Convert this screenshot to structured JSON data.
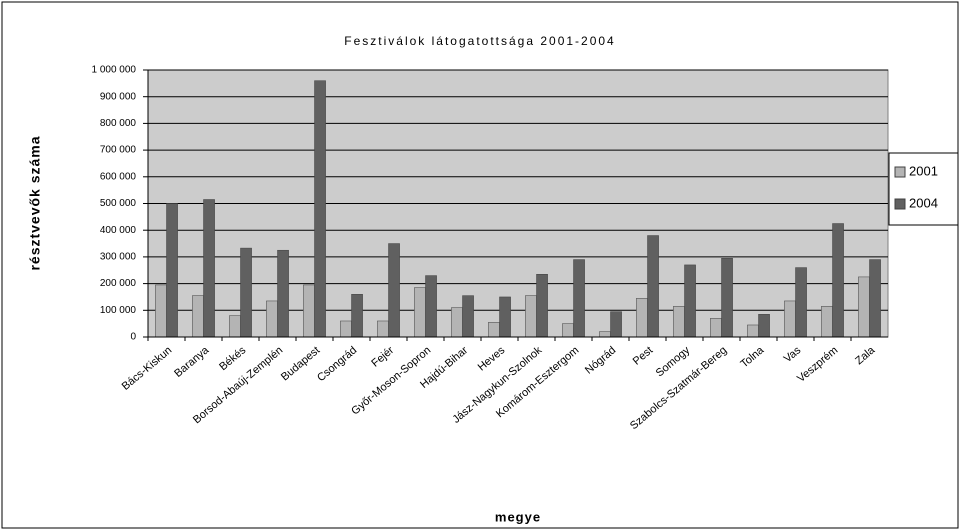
{
  "chart_data": {
    "type": "bar",
    "title": "Fesztiválok látogatottsága 2001-2004",
    "x_label": "megye",
    "y_label": "résztvevők száma",
    "categories": [
      "Bács-Kiskun",
      "Baranya",
      "Békés",
      "Borsod-Abaúj-Zemplén",
      "Budapest",
      "Csongrád",
      "Fejér",
      "Győr-Moson-Sopron",
      "Hajdú-Bihar",
      "Heves",
      "Jász-Nagykun-Szolnok",
      "Komárom-Esztergom",
      "Nógrád",
      "Pest",
      "Somogy",
      "Szabolcs-Szatmár-Bereg",
      "Tolna",
      "Vas",
      "Veszprém",
      "Zala"
    ],
    "series": [
      {
        "name": "2001",
        "color": "#b4b4b4",
        "values": [
          195000,
          155000,
          80000,
          135000,
          195000,
          60000,
          60000,
          185000,
          110000,
          55000,
          155000,
          50000,
          20000,
          145000,
          115000,
          70000,
          45000,
          135000,
          115000,
          225000
        ]
      },
      {
        "name": "2004",
        "color": "#606060",
        "values": [
          500000,
          515000,
          333000,
          325000,
          960000,
          160000,
          350000,
          230000,
          155000,
          150000,
          235000,
          290000,
          95000,
          380000,
          270000,
          295000,
          85000,
          260000,
          425000,
          290000
        ]
      }
    ],
    "ylim": [
      0,
      1000000
    ],
    "yticks": [
      0,
      {
        "value": 100000,
        "label": "100 000"
      },
      {
        "value": 200000,
        "label": "200 000"
      },
      {
        "value": 300000,
        "label": "300 000"
      },
      {
        "value": 400000,
        "label": "400 000"
      },
      {
        "value": 500000,
        "label": "500 000"
      },
      {
        "value": 600000,
        "label": "600 000"
      },
      {
        "value": 700000,
        "label": "700 000"
      },
      {
        "value": 800000,
        "label": "800 000"
      },
      {
        "value": 900000,
        "label": "900 000"
      },
      {
        "value": 1000000,
        "label": "1 000 000"
      }
    ],
    "grid": true,
    "legend": "right"
  }
}
